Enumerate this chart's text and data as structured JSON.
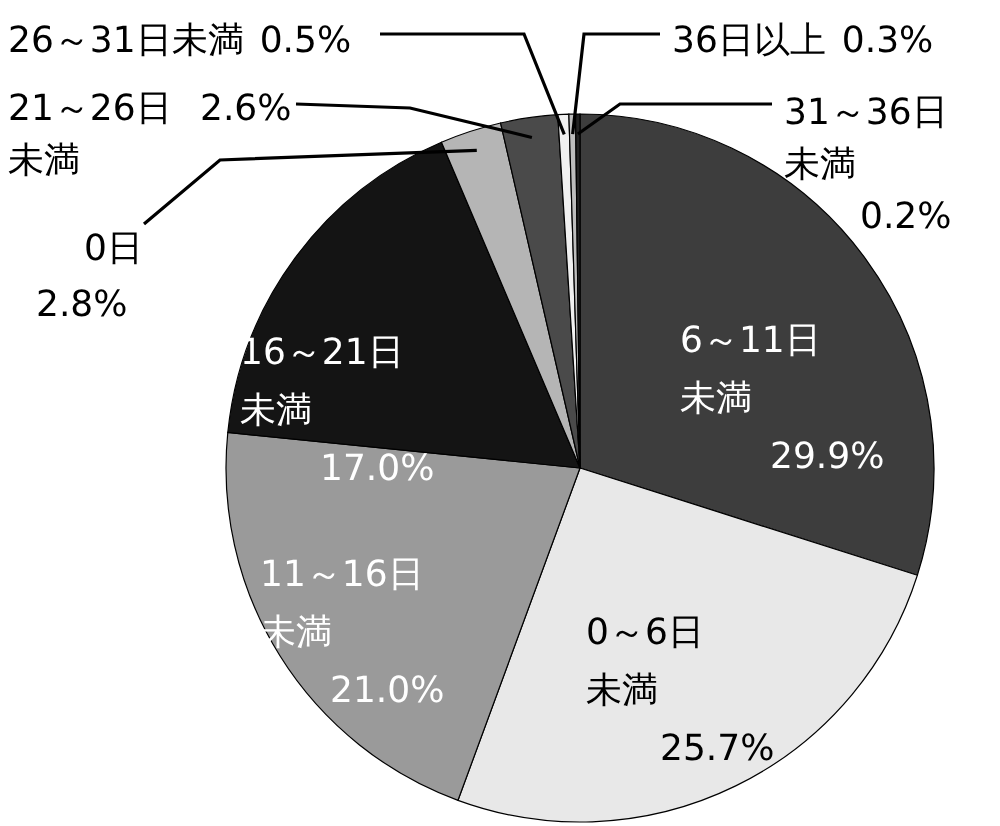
{
  "chart_data": {
    "type": "pie",
    "categories": [
      "6～11日未満",
      "0～6日未満",
      "11～16日未満",
      "16～21日未満",
      "0日",
      "21～26日未満",
      "26～31日未満",
      "36日以上",
      "31～36日未満"
    ],
    "values": [
      29.9,
      25.7,
      21.0,
      17.0,
      2.8,
      2.6,
      0.5,
      0.3,
      0.2
    ],
    "value_labels": [
      "29.9%",
      "25.7%",
      "21.0%",
      "17.0%",
      "2.8%",
      "2.6%",
      "0.5%",
      "0.3%",
      "0.2%"
    ],
    "colors": [
      "#3d3d3d",
      "#e8e8e8",
      "#9a9a9a",
      "#141414",
      "#b5b5b5",
      "#4a4a4a",
      "#f0f0f0",
      "#bdbdbd",
      "#222222"
    ]
  }
}
